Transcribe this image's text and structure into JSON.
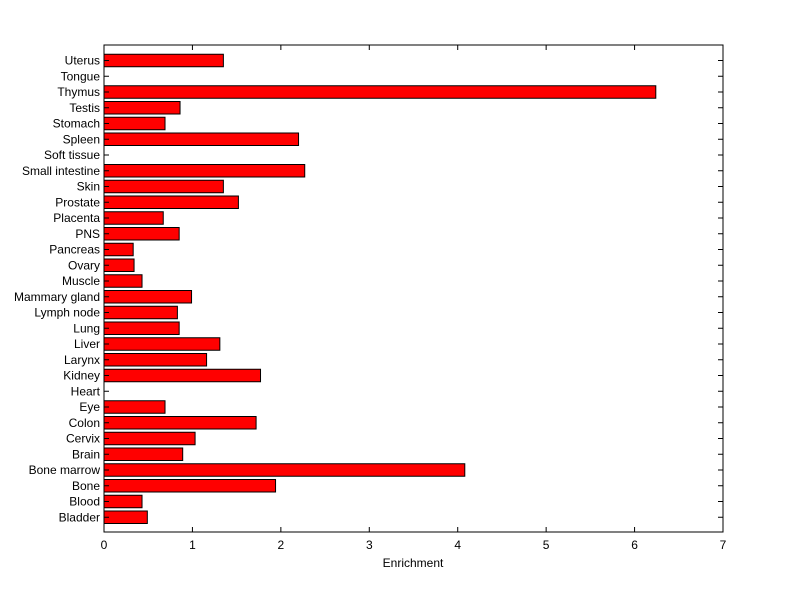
{
  "chart_data": {
    "type": "bar",
    "orientation": "horizontal",
    "title": "",
    "xlabel": "Enrichment",
    "ylabel": "",
    "xlim": [
      0,
      7
    ],
    "xticks": [
      0,
      1,
      2,
      3,
      4,
      5,
      6,
      7
    ],
    "grid": false,
    "legend": "none",
    "bar_color": "#ff0000",
    "edge_color": "#000000",
    "categories": [
      "Uterus",
      "Tongue",
      "Thymus",
      "Testis",
      "Stomach",
      "Spleen",
      "Soft tissue",
      "Small intestine",
      "Skin",
      "Prostate",
      "Placenta",
      "PNS",
      "Pancreas",
      "Ovary",
      "Muscle",
      "Mammary gland",
      "Lymph node",
      "Lung",
      "Liver",
      "Larynx",
      "Kidney",
      "Heart",
      "Eye",
      "Colon",
      "Cervix",
      "Brain",
      "Bone marrow",
      "Bone",
      "Blood",
      "Bladder"
    ],
    "values": [
      1.35,
      0,
      6.24,
      0.86,
      0.69,
      2.2,
      0,
      2.27,
      1.35,
      1.52,
      0.67,
      0.85,
      0.33,
      0.34,
      0.43,
      0.99,
      0.83,
      0.85,
      1.31,
      1.16,
      1.77,
      0,
      0.69,
      1.72,
      1.03,
      0.89,
      4.08,
      1.94,
      0.43,
      0.49
    ]
  }
}
